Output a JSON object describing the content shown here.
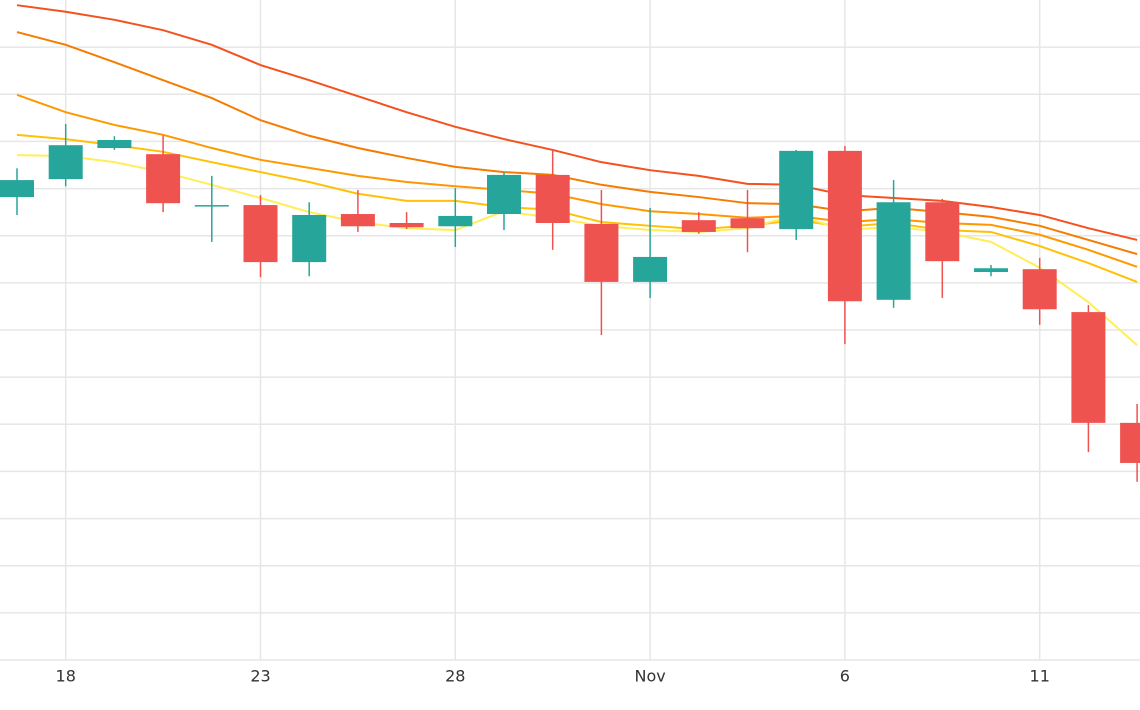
{
  "chart_data": {
    "type": "candlestick",
    "categories": [
      null,
      "18",
      null,
      null,
      null,
      "23",
      null,
      null,
      null,
      "28",
      null,
      null,
      null,
      "Nov",
      null,
      null,
      null,
      "6",
      null,
      null,
      null,
      "11",
      null,
      null
    ],
    "open": [
      9.82,
      10.2,
      10.86,
      10.73,
      9.63,
      9.65,
      8.44,
      9.46,
      9.27,
      9.2,
      9.46,
      10.29,
      9.25,
      8.02,
      9.33,
      9.37,
      9.14,
      10.8,
      7.64,
      9.71,
      8.23,
      8.29,
      7.38,
      5.03
    ],
    "close": [
      10.18,
      10.92,
      11.03,
      9.69,
      9.65,
      8.44,
      9.44,
      9.2,
      9.18,
      9.42,
      10.29,
      9.27,
      8.02,
      8.55,
      9.08,
      9.16,
      10.8,
      7.61,
      9.71,
      8.46,
      8.31,
      7.44,
      5.03,
      4.18
    ],
    "high": [
      10.43,
      11.37,
      11.11,
      11.13,
      10.27,
      9.86,
      9.71,
      9.97,
      9.5,
      10.01,
      10.35,
      10.82,
      9.97,
      9.59,
      9.5,
      9.97,
      10.82,
      10.9,
      10.18,
      9.78,
      8.38,
      8.53,
      7.53,
      5.43
    ],
    "low": [
      9.44,
      10.05,
      10.82,
      9.5,
      8.87,
      8.12,
      8.14,
      9.08,
      9.14,
      8.76,
      9.12,
      8.7,
      6.89,
      7.68,
      9.04,
      8.65,
      8.91,
      6.7,
      7.47,
      7.68,
      8.14,
      7.11,
      4.41,
      3.78
    ],
    "up_color": "#26a69a",
    "down_color": "#ef5350",
    "series": [
      {
        "color": "#f4511e",
        "values": [
          13.89,
          13.75,
          13.58,
          13.36,
          13.05,
          12.62,
          12.3,
          11.96,
          11.62,
          11.31,
          11.05,
          10.82,
          10.56,
          10.39,
          10.27,
          10.1,
          10.08,
          9.86,
          9.8,
          9.74,
          9.61,
          9.44,
          9.16,
          8.91
        ]
      },
      {
        "color": "#f57c00",
        "values": [
          13.32,
          13.05,
          12.68,
          12.3,
          11.92,
          11.45,
          11.12,
          10.86,
          10.65,
          10.46,
          10.35,
          10.29,
          10.08,
          9.93,
          9.82,
          9.69,
          9.67,
          9.52,
          9.59,
          9.5,
          9.4,
          9.21,
          8.91,
          8.61
        ]
      },
      {
        "color": "#ff9800",
        "values": [
          11.99,
          11.62,
          11.35,
          11.14,
          10.86,
          10.61,
          10.44,
          10.27,
          10.14,
          10.05,
          9.97,
          9.89,
          9.67,
          9.52,
          9.46,
          9.38,
          9.42,
          9.29,
          9.35,
          9.27,
          9.23,
          9.02,
          8.7,
          8.34
        ]
      },
      {
        "color": "#ffc107",
        "values": [
          11.14,
          11.05,
          10.92,
          10.78,
          10.56,
          10.35,
          10.14,
          9.89,
          9.74,
          9.74,
          9.61,
          9.55,
          9.29,
          9.21,
          9.14,
          9.21,
          9.33,
          9.19,
          9.27,
          9.12,
          9.08,
          8.78,
          8.42,
          8.02
        ]
      },
      {
        "color": "#ffee58",
        "values": [
          10.71,
          10.69,
          10.56,
          10.35,
          10.08,
          9.8,
          9.5,
          9.29,
          9.16,
          9.12,
          9.52,
          9.38,
          9.21,
          9.12,
          9.08,
          9.16,
          9.44,
          9.12,
          9.19,
          9.08,
          8.87,
          8.32,
          7.59,
          6.68
        ]
      }
    ],
    "ylim": [
      0,
      14
    ],
    "yticks": [
      0,
      1,
      2,
      3,
      4,
      5,
      6,
      7,
      8,
      9,
      10,
      11,
      12,
      13
    ],
    "grid": true
  }
}
